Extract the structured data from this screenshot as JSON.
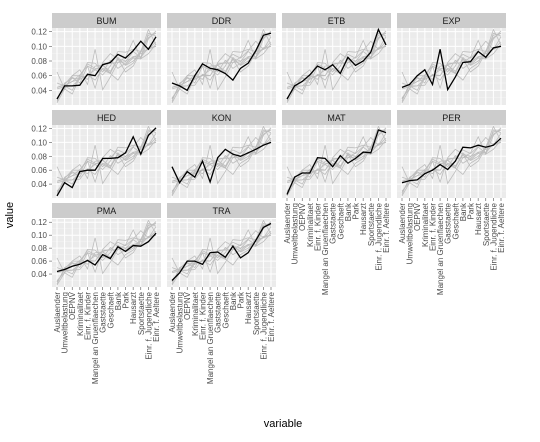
{
  "chart_data": {
    "type": "line",
    "title": "",
    "xlabel": "variable",
    "ylabel": "value",
    "ylim": [
      0.02,
      0.125
    ],
    "yticks": [
      0.04,
      0.06,
      0.08,
      0.1,
      0.12
    ],
    "ytick_labels": [
      "0.04",
      "0.06",
      "0.08",
      "0.10",
      "0.12"
    ],
    "grid": true,
    "layout": "faceted 4 columns x 3 rows",
    "colors": {
      "panel_bg": "#ebebeb",
      "strip_bg": "#cccccc",
      "grid": "#ffffff",
      "highlight_line": "#000000",
      "background_lines": "#bdbdbd"
    },
    "categories": [
      "Auslaender",
      "Umweltbelastung",
      "OEPNV",
      "Kriminalitaet",
      "Einr. f. Kinder",
      "Mangel an Gruenflaechen",
      "Gaststaette",
      "Geschaeft",
      "Bank",
      "Park",
      "Hausarzt",
      "Sportstaette",
      "Einr. f. Jugendliche",
      "Einr. f. Aeltere"
    ],
    "panels": [
      {
        "name": "BUM",
        "values": [
          0.028,
          0.046,
          0.046,
          0.047,
          0.062,
          0.06,
          0.075,
          0.078,
          0.089,
          0.084,
          0.094,
          0.107,
          0.096,
          0.113
        ]
      },
      {
        "name": "DDR",
        "values": [
          0.05,
          0.046,
          0.04,
          0.06,
          0.076,
          0.07,
          0.068,
          0.063,
          0.054,
          0.07,
          0.077,
          0.094,
          0.115,
          0.118
        ]
      },
      {
        "name": "ETB",
        "values": [
          0.028,
          0.046,
          0.052,
          0.061,
          0.073,
          0.068,
          0.075,
          0.063,
          0.085,
          0.074,
          0.08,
          0.092,
          0.123,
          0.102
        ]
      },
      {
        "name": "EXP",
        "values": [
          0.044,
          0.048,
          0.06,
          0.068,
          0.048,
          0.096,
          0.041,
          0.058,
          0.078,
          0.079,
          0.093,
          0.085,
          0.098,
          0.1
        ]
      },
      {
        "name": "HED",
        "values": [
          0.023,
          0.042,
          0.035,
          0.058,
          0.06,
          0.06,
          0.077,
          0.077,
          0.078,
          0.085,
          0.108,
          0.083,
          0.11,
          0.121
        ]
      },
      {
        "name": "KON",
        "values": [
          0.065,
          0.042,
          0.058,
          0.05,
          0.073,
          0.043,
          0.078,
          0.09,
          0.083,
          0.08,
          0.085,
          0.09,
          0.096,
          0.1
        ]
      },
      {
        "name": "MAT",
        "values": [
          0.025,
          0.05,
          0.056,
          0.056,
          0.078,
          0.077,
          0.065,
          0.081,
          0.07,
          0.077,
          0.086,
          0.085,
          0.118,
          0.114
        ]
      },
      {
        "name": "PER",
        "values": [
          0.042,
          0.045,
          0.046,
          0.055,
          0.06,
          0.068,
          0.061,
          0.073,
          0.093,
          0.092,
          0.096,
          0.093,
          0.096,
          0.106
        ]
      },
      {
        "name": "PMA",
        "values": [
          0.044,
          0.047,
          0.052,
          0.055,
          0.061,
          0.054,
          0.07,
          0.064,
          0.082,
          0.075,
          0.084,
          0.083,
          0.09,
          0.103
        ]
      },
      {
        "name": "TRA",
        "values": [
          0.03,
          0.042,
          0.06,
          0.06,
          0.055,
          0.073,
          0.074,
          0.066,
          0.083,
          0.065,
          0.073,
          0.092,
          0.112,
          0.118
        ]
      }
    ]
  }
}
